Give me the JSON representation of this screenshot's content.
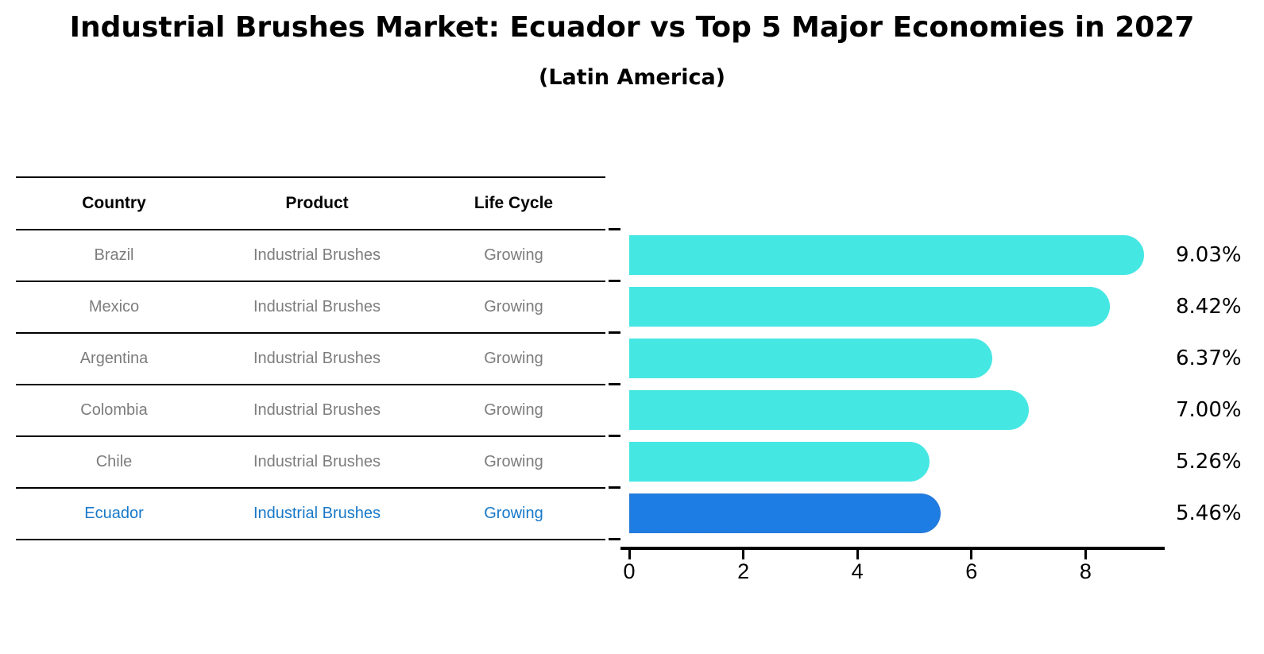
{
  "title": "Industrial Brushes Market: Ecuador vs Top 5 Major Economies in 2027",
  "subtitle": "(Latin America)",
  "table": {
    "headers": [
      "Country",
      "Product",
      "Life Cycle"
    ],
    "rows": [
      {
        "country": "Brazil",
        "product": "Industrial Brushes",
        "life_cycle": "Growing",
        "highlight": false
      },
      {
        "country": "Mexico",
        "product": "Industrial Brushes",
        "life_cycle": "Growing",
        "highlight": false
      },
      {
        "country": "Argentina",
        "product": "Industrial Brushes",
        "life_cycle": "Growing",
        "highlight": false
      },
      {
        "country": "Colombia",
        "product": "Industrial Brushes",
        "life_cycle": "Growing",
        "highlight": false
      },
      {
        "country": "Chile",
        "product": "Industrial Brushes",
        "life_cycle": "Growing",
        "highlight": false
      },
      {
        "country": "Ecuador",
        "product": "Industrial Brushes",
        "life_cycle": "Growing",
        "highlight": true
      }
    ]
  },
  "chart_data": {
    "type": "bar",
    "orientation": "horizontal",
    "title": "Industrial Brushes Market: Ecuador vs Top 5 Major Economies in 2027",
    "subtitle": "(Latin America)",
    "categories": [
      "Brazil",
      "Mexico",
      "Argentina",
      "Colombia",
      "Chile",
      "Ecuador"
    ],
    "values": [
      9.03,
      8.42,
      6.37,
      7.0,
      5.26,
      5.46
    ],
    "value_labels": [
      "9.03%",
      "8.42%",
      "6.37%",
      "7.00%",
      "5.26%",
      "5.46%"
    ],
    "highlight_index": 5,
    "xlim": [
      0,
      9.4
    ],
    "xticks": [
      0,
      2,
      4,
      6,
      8
    ],
    "xtick_labels": [
      "0",
      "2",
      "4",
      "6",
      "8"
    ],
    "grid": false,
    "legend": null,
    "bar_color": "#45E7E3",
    "highlight_bar_color": "#1E7DE4",
    "highlight_border_color": "#2b79cf",
    "highlight_text_color": "#1878C8",
    "row_text_color": "#7d7d7d"
  }
}
